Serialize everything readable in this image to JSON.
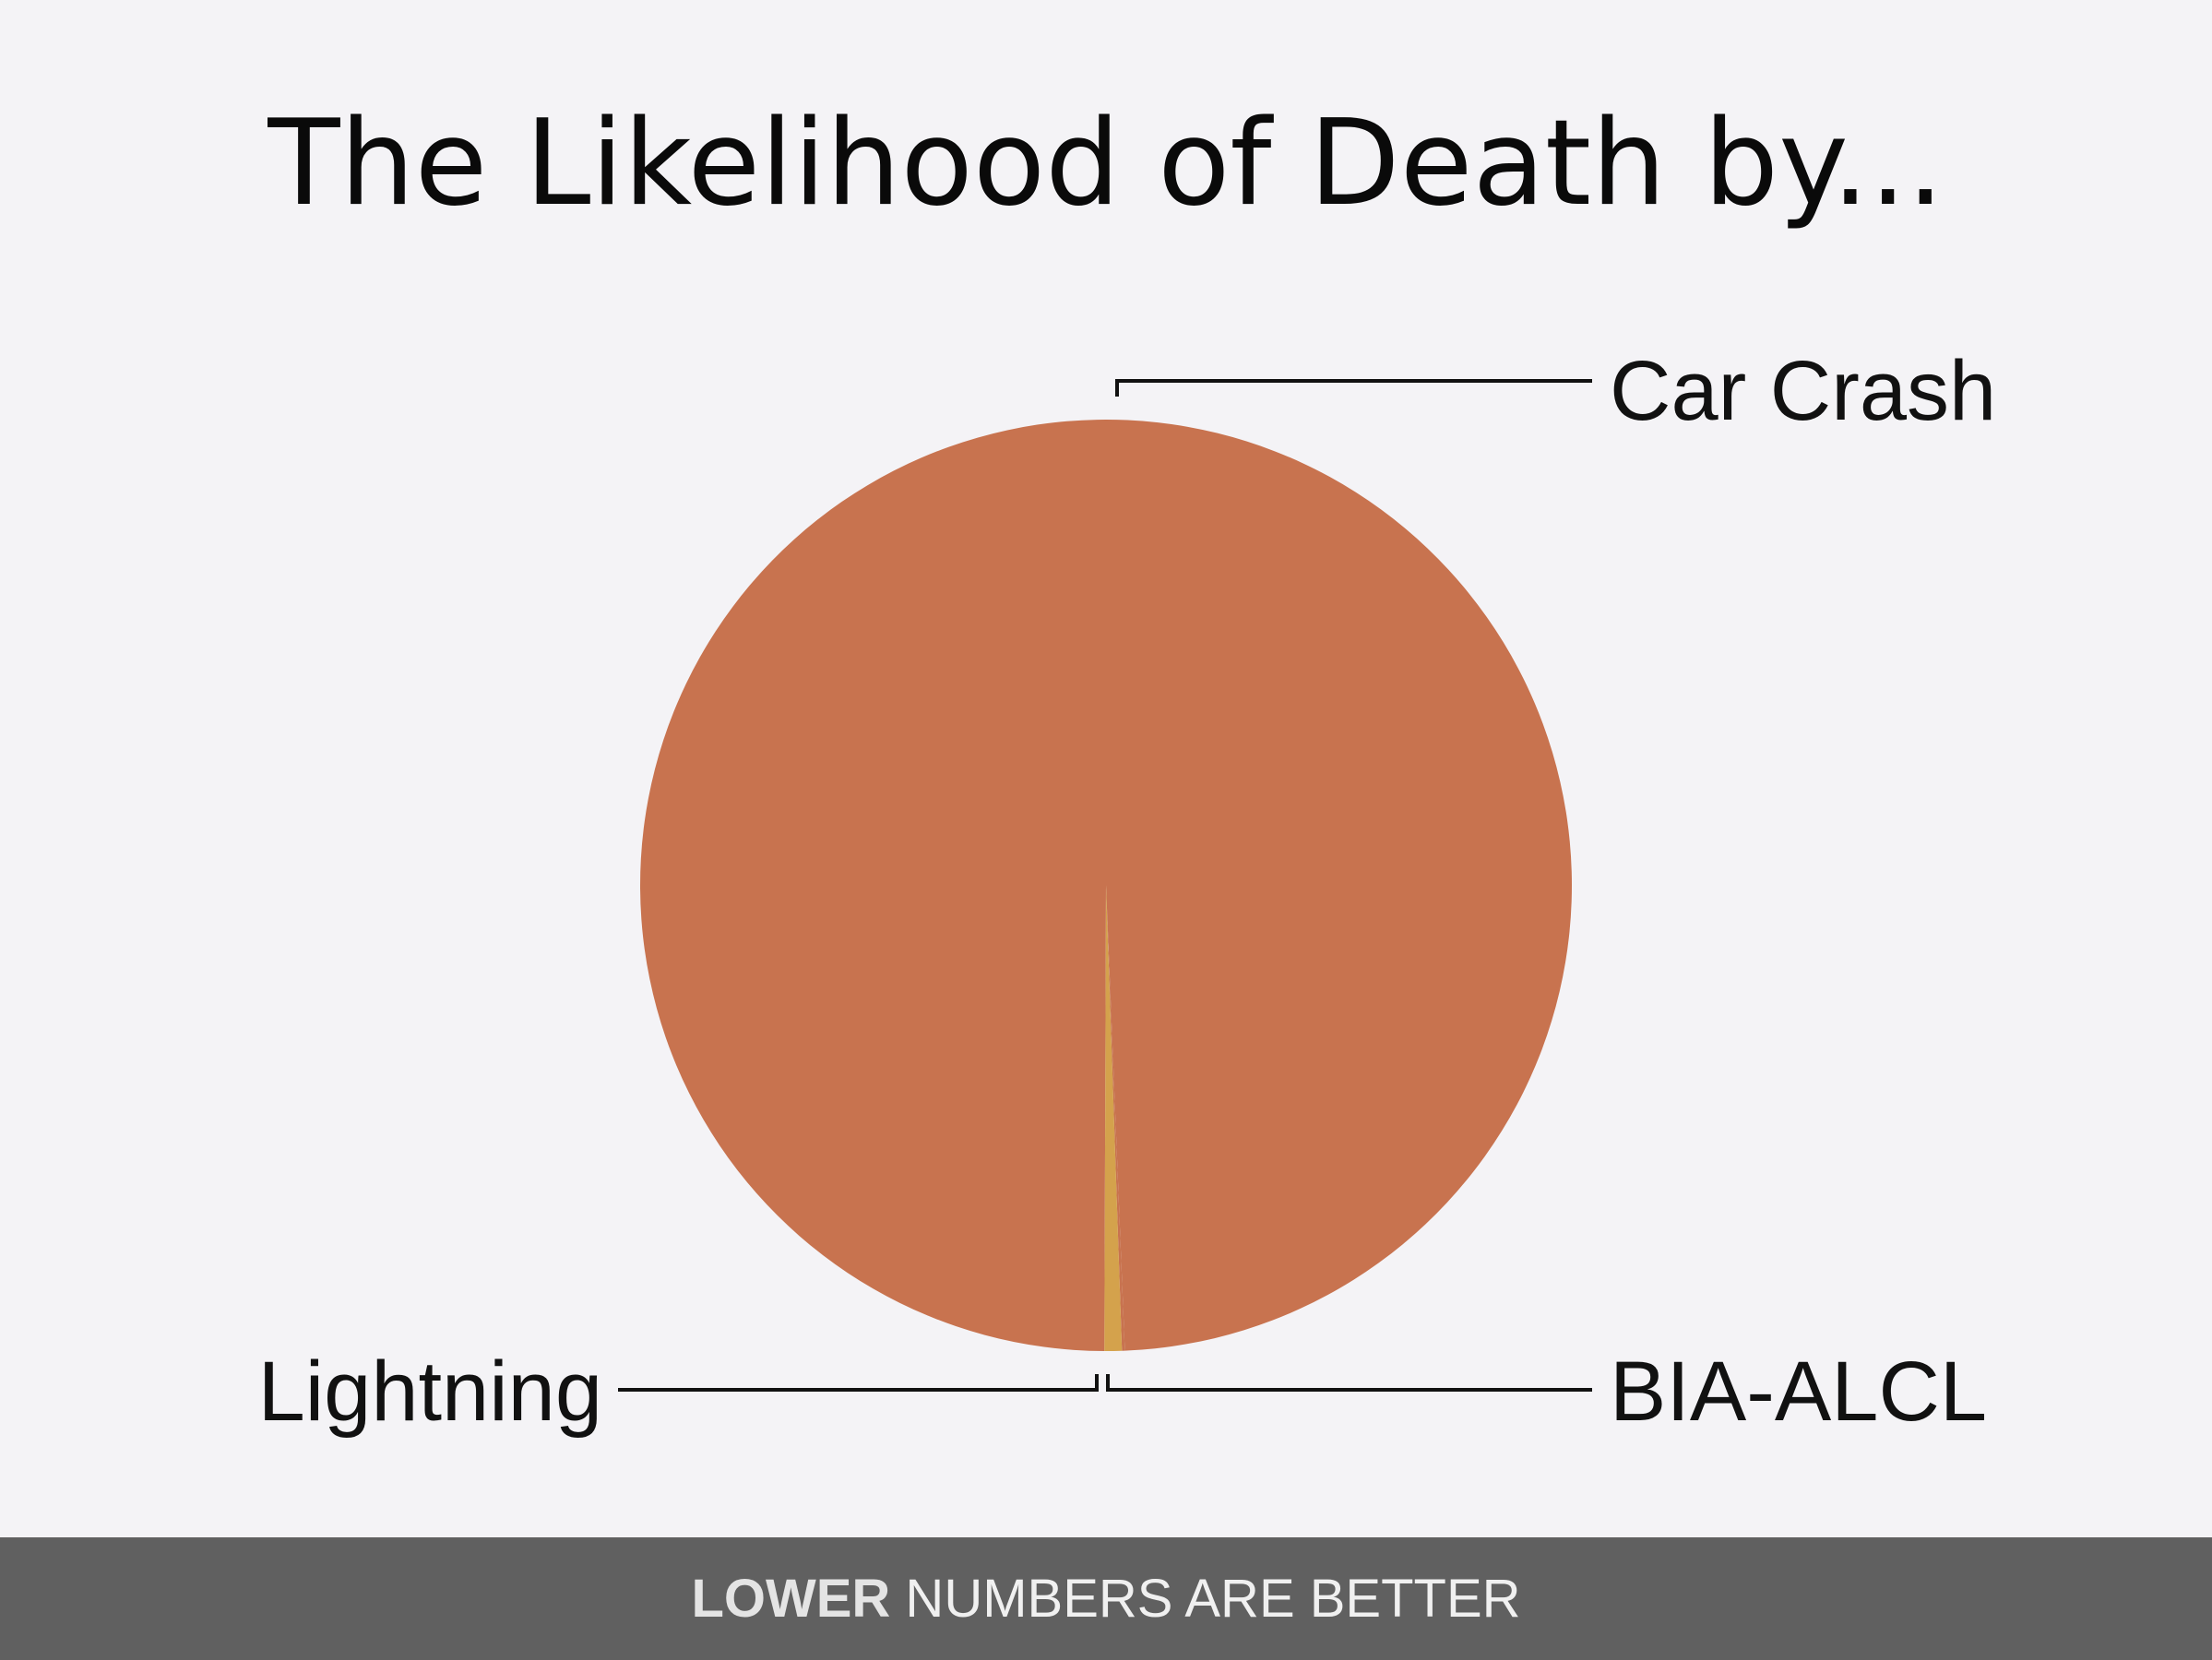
{
  "chart_data": {
    "type": "pie",
    "title": "The Likelihood of Death by...",
    "slices": [
      {
        "label": "Car Crash",
        "value": 99.3,
        "color": "#c8734f"
      },
      {
        "label": "Lightning",
        "value": 0.6,
        "color": "#d4a24c"
      },
      {
        "label": "BIA-ALCL",
        "value": 0.1,
        "color": "#c8734f"
      }
    ]
  },
  "footer": {
    "emphasis": "LOWER",
    "rest": " NUMBERS ARE BETTER"
  }
}
